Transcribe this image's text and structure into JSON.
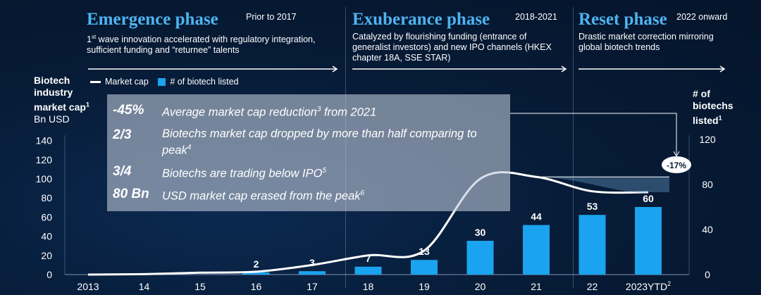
{
  "phases": [
    {
      "title": "Emergence phase",
      "period": "Prior to 2017",
      "description_html": "1<sup>st</sup> wave innovation accelerated with regulatory integration, sufficient funding and “returnee” talents"
    },
    {
      "title": "Exuberance phase",
      "period": "2018-2021",
      "description_html": "Catalyzed by flourishing funding (entrance of generalist investors) and new IPO channels (HKEX chapter 18A, SSE STAR)"
    },
    {
      "title": "Reset phase",
      "period": "2022 onward",
      "description_html": "Drastic market correction mirroring global biotech trends"
    }
  ],
  "left_axis_title_html": "<b>Biotech<br>industry<br>market cap<sup>1</sup></b><br>Bn USD",
  "right_axis_title_html": "<b># of<br>biotechs<br>listed<sup>1</sup></b>",
  "legend": {
    "line_label": "Market cap",
    "bar_label": "# of biotech listed"
  },
  "stats": [
    {
      "value": "-45%",
      "text_html": "Average market cap reduction<sup>3</sup> from 2021"
    },
    {
      "value": "2/3",
      "text_html": "Biotechs market cap dropped by more than half comparing to peak<sup>4</sup>"
    },
    {
      "value": "3/4",
      "text_html": "Biotechs are trading below IPO<sup>5</sup>"
    },
    {
      "value": "80 Bn",
      "text_html": "USD market cap erased from the peak<sup>6</sup>"
    }
  ],
  "callout_label": "-17%",
  "colors": {
    "bar": "#1aa3ee",
    "line": "#ffffff",
    "accent": "#4fb3f0",
    "background": "#061a33"
  },
  "chart_data": {
    "type": "bar",
    "categories": [
      "2013",
      "14",
      "15",
      "16",
      "17",
      "18",
      "19",
      "20",
      "21",
      "22",
      "2023YTD"
    ],
    "last_category_superscript": "2",
    "bar_axis": "right",
    "series": [
      {
        "name": "# of biotech listed",
        "type": "bar",
        "axis": "right",
        "values": [
          0,
          0,
          0,
          2,
          3,
          7,
          13,
          30,
          44,
          53,
          60
        ],
        "labels": [
          "",
          "",
          "",
          "2",
          "3",
          "7",
          "13",
          "30",
          "44",
          "53",
          "60"
        ]
      },
      {
        "name": "Market cap",
        "type": "line",
        "axis": "left",
        "values": [
          0,
          0.5,
          2,
          3,
          10,
          20,
          25,
          100,
          102,
          87,
          86
        ]
      }
    ],
    "left_axis": {
      "ticks": [
        0,
        20,
        40,
        60,
        80,
        100,
        120,
        140
      ],
      "range": [
        0,
        140
      ]
    },
    "right_axis": {
      "ticks": [
        0,
        40,
        80,
        120
      ],
      "range": [
        0,
        120
      ]
    }
  }
}
